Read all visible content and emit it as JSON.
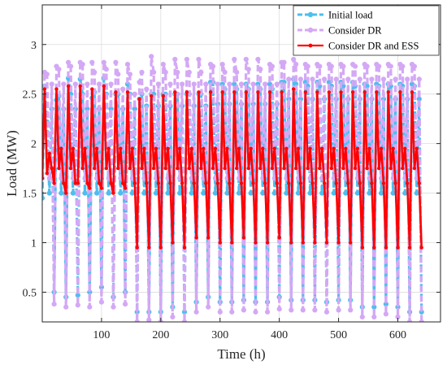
{
  "chart_data": {
    "type": "line",
    "xlabel": "Time (h)",
    "ylabel": "Load (MW)",
    "xlim": [
      0,
      672
    ],
    "ylim": [
      0.2,
      3.4
    ],
    "x_ticks": [
      100,
      200,
      300,
      400,
      500,
      600
    ],
    "y_ticks": [
      0.5,
      1,
      1.5,
      2,
      2.5,
      3
    ],
    "grid": true,
    "legend_position": "top-right",
    "x_step": 4,
    "series": [
      {
        "name": "Initial load",
        "color": "#4dbeee",
        "style": "dashed",
        "marker": "circle",
        "values": [
          1.45,
          2.58,
          2.22,
          1.5,
          2.35,
          0.5,
          2.44,
          2.48,
          1.5,
          2.35,
          0.45,
          2.66,
          2.5,
          1.5,
          2.35,
          0.47,
          2.65,
          2.5,
          1.5,
          2.35,
          0.5,
          2.46,
          2.52,
          1.5,
          2.35,
          0.55,
          2.66,
          2.5,
          1.5,
          2.35,
          0.45,
          2.5,
          2.5,
          1.5,
          2.35,
          0.5,
          2.6,
          2.5,
          1.5,
          2.35,
          0.3,
          2.45,
          2.5,
          1.5,
          2.38,
          0.3,
          2.5,
          2.5,
          1.5,
          2.38,
          0.3,
          2.5,
          2.5,
          1.5,
          2.38,
          0.35,
          2.5,
          2.5,
          1.5,
          2.38,
          0.3,
          2.5,
          2.5,
          1.5,
          2.38,
          0.4,
          2.5,
          2.5,
          1.5,
          2.38,
          0.45,
          2.62,
          2.62,
          1.5,
          2.4,
          0.4,
          2.6,
          2.55,
          1.5,
          2.4,
          0.4,
          2.6,
          2.55,
          1.5,
          2.4,
          0.42,
          2.6,
          2.55,
          1.5,
          2.4,
          0.4,
          2.6,
          2.55,
          1.5,
          2.4,
          0.4,
          2.6,
          2.55,
          1.5,
          2.4,
          0.45,
          2.62,
          2.62,
          1.5,
          2.45,
          0.42,
          2.65,
          2.6,
          1.5,
          2.45,
          0.42,
          2.62,
          2.58,
          1.5,
          2.45,
          0.42,
          2.62,
          2.58,
          1.5,
          2.45,
          0.4,
          2.62,
          2.58,
          1.5,
          2.45,
          0.42,
          2.62,
          2.58,
          1.5,
          2.45,
          0.42,
          2.62,
          2.58,
          1.5,
          2.45,
          0.35,
          2.6,
          2.58,
          1.5,
          2.45,
          0.35,
          2.6,
          2.58,
          1.5,
          2.45,
          0.38,
          2.6,
          2.58,
          1.5,
          2.45,
          0.35,
          2.6,
          2.58,
          1.5,
          2.45,
          0.3,
          2.6,
          2.58,
          1.5,
          2.45,
          0.3
        ]
      },
      {
        "name": "Consider DR",
        "color": "#d4a8f5",
        "style": "dashed",
        "marker": "circle",
        "values": [
          1.65,
          2.72,
          2.7,
          1.65,
          2.6,
          0.38,
          2.78,
          2.75,
          1.65,
          2.6,
          0.35,
          2.82,
          2.78,
          1.65,
          2.6,
          0.37,
          2.82,
          2.8,
          1.65,
          2.6,
          0.35,
          2.82,
          2.72,
          1.65,
          2.6,
          0.4,
          2.82,
          2.75,
          1.65,
          2.6,
          0.35,
          2.82,
          2.7,
          1.65,
          2.55,
          0.38,
          2.8,
          2.7,
          1.65,
          2.5,
          0.2,
          2.62,
          2.72,
          1.65,
          2.55,
          0.22,
          2.88,
          2.72,
          1.65,
          2.6,
          0.2,
          2.8,
          2.72,
          1.65,
          2.6,
          0.25,
          2.85,
          2.72,
          1.65,
          2.6,
          0.2,
          2.85,
          2.72,
          1.65,
          2.6,
          0.3,
          2.85,
          2.72,
          1.65,
          2.6,
          0.35,
          2.8,
          2.78,
          1.65,
          2.6,
          0.3,
          2.8,
          2.72,
          1.65,
          2.6,
          0.3,
          2.85,
          2.72,
          1.65,
          2.6,
          0.32,
          2.85,
          2.75,
          1.65,
          2.6,
          0.3,
          2.85,
          2.75,
          1.65,
          2.6,
          0.3,
          2.8,
          2.78,
          1.65,
          2.6,
          0.33,
          2.82,
          2.82,
          1.65,
          2.65,
          0.32,
          2.85,
          2.8,
          1.65,
          2.65,
          0.32,
          2.8,
          2.78,
          1.65,
          2.65,
          0.32,
          2.8,
          2.78,
          1.65,
          2.65,
          0.3,
          2.8,
          2.78,
          1.65,
          2.65,
          0.32,
          2.8,
          2.78,
          1.65,
          2.65,
          0.32,
          2.8,
          2.78,
          1.65,
          2.65,
          0.25,
          2.8,
          2.78,
          1.65,
          2.65,
          0.25,
          2.8,
          2.78,
          1.65,
          2.65,
          0.28,
          2.8,
          2.78,
          1.65,
          2.65,
          0.25,
          2.8,
          2.78,
          1.65,
          2.65,
          0.2,
          2.8,
          2.78,
          1.65,
          2.65,
          0.2
        ]
      },
      {
        "name": "Consider DR and ESS",
        "color": "#ff0000",
        "style": "solid",
        "marker": "circle",
        "values": [
          1.65,
          2.55,
          1.7,
          1.9,
          1.75,
          1.6,
          2.55,
          1.75,
          1.95,
          1.6,
          1.5,
          2.58,
          1.75,
          1.95,
          1.6,
          1.6,
          2.58,
          1.75,
          1.95,
          1.6,
          1.55,
          2.55,
          1.75,
          1.95,
          1.6,
          1.55,
          2.58,
          1.75,
          1.95,
          1.6,
          1.5,
          2.52,
          1.75,
          1.95,
          1.6,
          1.55,
          2.52,
          1.75,
          1.95,
          1.6,
          0.95,
          2.45,
          1.75,
          1.95,
          1.6,
          0.95,
          2.48,
          1.75,
          1.95,
          1.6,
          0.95,
          2.48,
          1.75,
          1.95,
          1.6,
          1.0,
          2.52,
          1.75,
          1.95,
          1.6,
          0.95,
          2.52,
          1.75,
          1.95,
          1.6,
          1.05,
          2.52,
          1.75,
          1.95,
          1.6,
          1.05,
          2.52,
          1.75,
          1.95,
          1.6,
          1.0,
          2.52,
          1.75,
          1.95,
          1.6,
          1.0,
          2.52,
          1.75,
          1.95,
          1.6,
          1.05,
          2.52,
          1.75,
          1.95,
          1.6,
          1.0,
          2.52,
          1.75,
          1.95,
          1.6,
          1.0,
          2.52,
          1.75,
          1.95,
          1.6,
          1.05,
          2.52,
          1.75,
          1.95,
          1.6,
          1.0,
          2.55,
          1.75,
          1.95,
          1.6,
          1.0,
          2.52,
          1.75,
          1.95,
          1.6,
          1.0,
          2.52,
          1.75,
          1.95,
          1.6,
          1.0,
          2.52,
          1.75,
          1.95,
          1.6,
          1.0,
          2.52,
          1.75,
          1.95,
          1.6,
          1.0,
          2.52,
          1.75,
          1.95,
          1.6,
          0.95,
          2.52,
          1.75,
          1.95,
          1.6,
          0.95,
          2.52,
          1.75,
          1.95,
          1.6,
          0.95,
          2.52,
          1.75,
          1.95,
          1.6,
          0.95,
          2.52,
          1.75,
          1.95,
          1.6,
          0.95,
          2.52,
          1.75,
          1.95,
          1.6,
          0.95
        ]
      }
    ]
  }
}
